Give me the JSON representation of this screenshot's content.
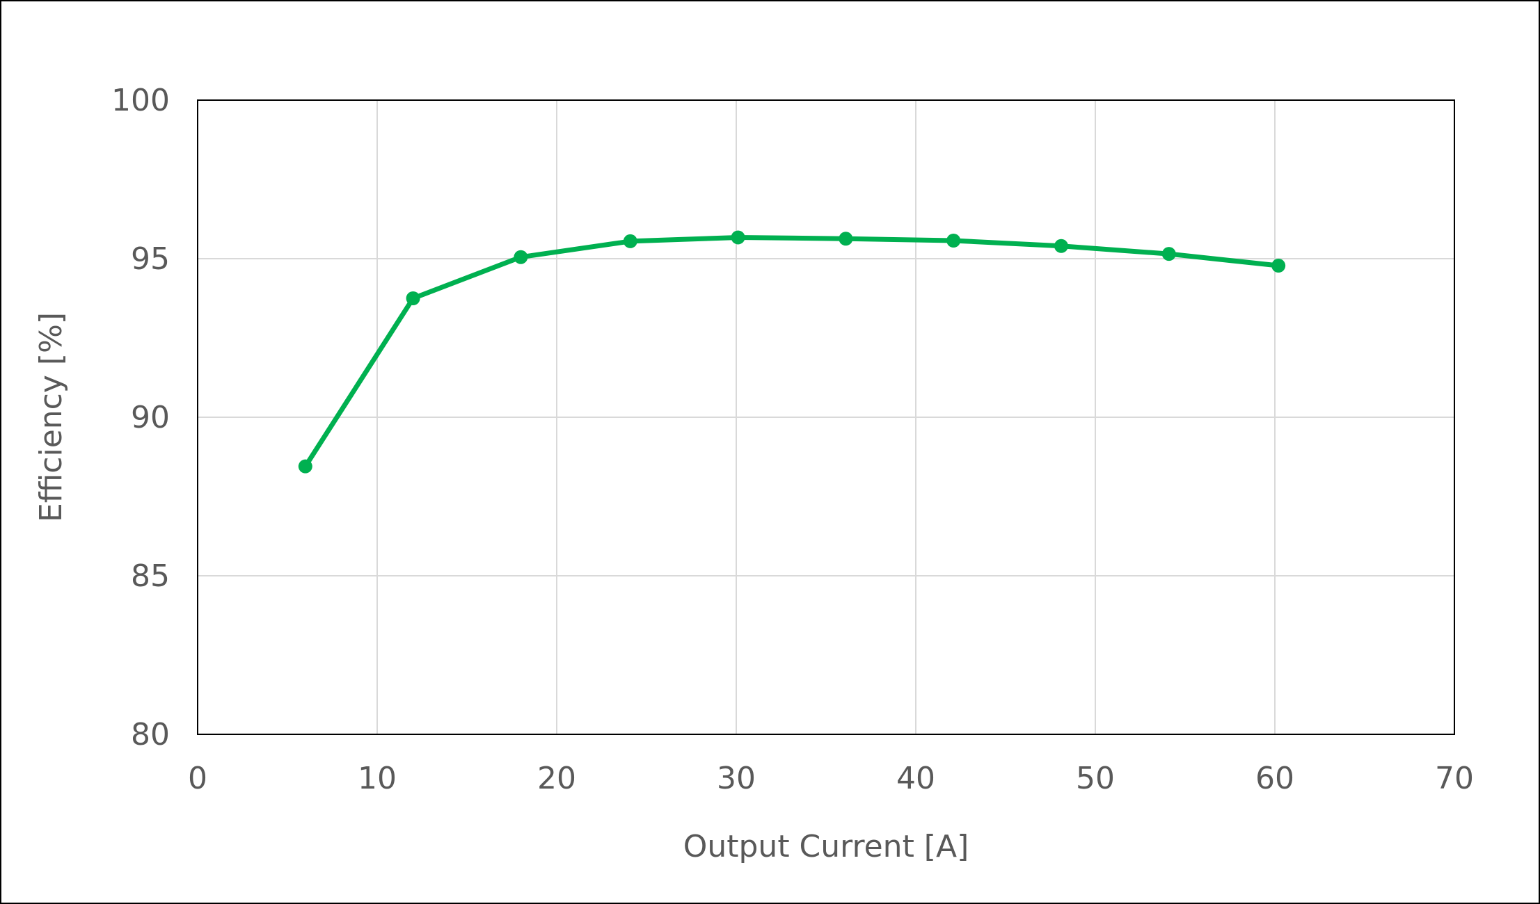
{
  "chart_data": {
    "type": "line",
    "title": "",
    "xlabel": "Output Current  [A]",
    "ylabel": "Efficiency  [%]",
    "xlim": [
      0,
      70
    ],
    "ylim": [
      80,
      100
    ],
    "xticks": [
      "0",
      "10",
      "20",
      "30",
      "40",
      "50",
      "60",
      "70"
    ],
    "yticks": [
      "80",
      "85",
      "90",
      "95",
      "100"
    ],
    "grid": true,
    "legend": "none",
    "series": [
      {
        "color": "#00B050",
        "marker": "circle",
        "x": [
          6.0,
          12.0,
          18.0,
          24.1,
          30.1,
          36.1,
          42.1,
          48.1,
          54.1,
          60.2
        ],
        "y": [
          88.45,
          93.75,
          95.05,
          95.55,
          95.67,
          95.63,
          95.57,
          95.4,
          95.15,
          94.78
        ]
      }
    ]
  }
}
